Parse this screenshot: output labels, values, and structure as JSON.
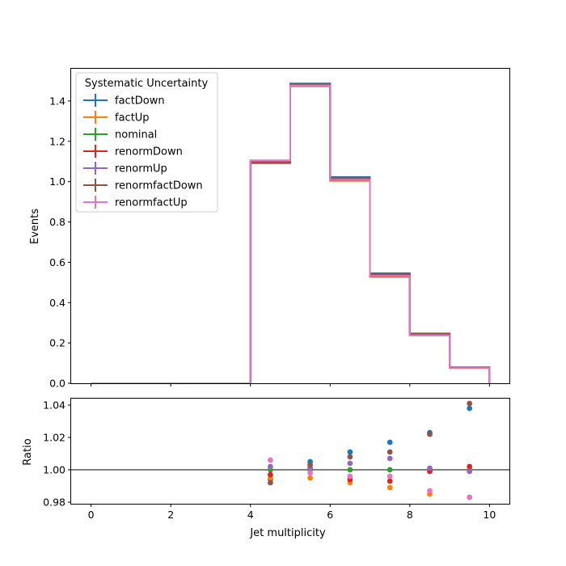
{
  "chart_data": [
    {
      "type": "line",
      "drawstyle": "step",
      "xlabel": "",
      "ylabel": "Events",
      "xlim": [
        -0.5,
        10.5
      ],
      "ylim": [
        0,
        1.56
      ],
      "yticks": [
        "0.0",
        "0.2",
        "0.4",
        "0.6",
        "0.8",
        "1.0",
        "1.2",
        "1.4"
      ],
      "bin_edges": [
        0,
        1,
        2,
        3,
        4,
        5,
        6,
        7,
        8,
        9,
        10
      ],
      "legend": {
        "title": "Systematic Uncertainty",
        "placement": "top-left"
      },
      "series": [
        {
          "name": "factDown",
          "color": "#1f77b4",
          "values": [
            0,
            0,
            0,
            0,
            1.094,
            1.487,
            1.023,
            0.546,
            0.247,
            0.078
          ]
        },
        {
          "name": "factUp",
          "color": "#ff7f0e",
          "values": [
            0,
            0,
            0,
            0,
            1.095,
            1.472,
            1.004,
            0.528,
            0.237,
            0.075
          ]
        },
        {
          "name": "nominal",
          "color": "#2ca02c",
          "values": [
            0,
            0,
            0,
            0,
            1.1,
            1.479,
            1.012,
            0.534,
            0.241,
            0.076
          ]
        },
        {
          "name": "renormDown",
          "color": "#d62728",
          "values": [
            0,
            0,
            0,
            0,
            1.096,
            1.48,
            1.006,
            0.53,
            0.241,
            0.076
          ]
        },
        {
          "name": "renormUp",
          "color": "#9467bd",
          "values": [
            0,
            0,
            0,
            0,
            1.102,
            1.481,
            1.016,
            0.538,
            0.241,
            0.076
          ]
        },
        {
          "name": "renormfactDown",
          "color": "#8c564b",
          "values": [
            0,
            0,
            0,
            0,
            1.092,
            1.485,
            1.02,
            0.54,
            0.246,
            0.079
          ]
        },
        {
          "name": "renormfactUp",
          "color": "#e377c2",
          "values": [
            0,
            0,
            0,
            0,
            1.106,
            1.476,
            1.008,
            0.532,
            0.238,
            0.075
          ]
        }
      ]
    },
    {
      "type": "scatter",
      "xlabel": "Jet multiplicity",
      "ylabel": "Ratio",
      "xlim": [
        -0.5,
        10.5
      ],
      "ylim": [
        0.979,
        1.044
      ],
      "xticks": [
        "0",
        "2",
        "4",
        "6",
        "8",
        "10"
      ],
      "yticks": [
        "0.98",
        "1.00",
        "1.02",
        "1.04"
      ],
      "reference_line": 1.0,
      "x": [
        4.5,
        5.5,
        6.5,
        7.5,
        8.5,
        9.5
      ],
      "series": [
        {
          "name": "factDown",
          "color": "#1f77b4",
          "values": [
            0.994,
            1.005,
            1.011,
            1.017,
            1.023,
            1.038
          ]
        },
        {
          "name": "factUp",
          "color": "#ff7f0e",
          "values": [
            0.995,
            0.995,
            0.992,
            0.989,
            0.985,
            0.983
          ]
        },
        {
          "name": "nominal",
          "color": "#2ca02c",
          "values": [
            1.0,
            1.0,
            1.0,
            1.0,
            1.0,
            1.0
          ]
        },
        {
          "name": "renormDown",
          "color": "#d62728",
          "values": [
            0.997,
            1.001,
            0.994,
            0.993,
            0.999,
            1.002
          ]
        },
        {
          "name": "renormUp",
          "color": "#9467bd",
          "values": [
            1.002,
            1.001,
            1.004,
            1.007,
            1.001,
            0.999
          ]
        },
        {
          "name": "renormfactDown",
          "color": "#8c564b",
          "values": [
            0.992,
            1.003,
            1.008,
            1.011,
            1.022,
            1.041
          ]
        },
        {
          "name": "renormfactUp",
          "color": "#e377c2",
          "values": [
            1.006,
            0.998,
            0.996,
            0.996,
            0.987,
            0.983
          ]
        }
      ]
    }
  ]
}
